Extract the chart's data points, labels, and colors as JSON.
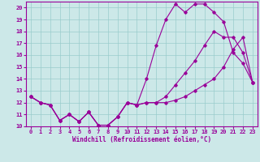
{
  "xlabel": "Windchill (Refroidissement éolien,°C)",
  "background_color": "#cce8e8",
  "grid_color": "#99cccc",
  "line_color": "#990099",
  "x_hours": [
    0,
    1,
    2,
    3,
    4,
    5,
    6,
    7,
    8,
    9,
    10,
    11,
    12,
    13,
    14,
    15,
    16,
    17,
    18,
    19,
    20,
    21,
    22,
    23
  ],
  "line1": [
    12.5,
    12.0,
    11.8,
    10.5,
    11.0,
    10.4,
    11.2,
    10.1,
    10.1,
    10.8,
    12.0,
    11.8,
    14.0,
    16.8,
    19.0,
    20.3,
    19.6,
    20.3,
    20.3,
    19.6,
    18.8,
    16.2,
    15.3,
    13.7
  ],
  "line2": [
    12.5,
    12.0,
    11.8,
    10.5,
    11.0,
    10.4,
    11.2,
    10.1,
    10.1,
    10.8,
    12.0,
    11.8,
    12.0,
    12.0,
    12.5,
    13.5,
    14.5,
    15.5,
    16.8,
    18.0,
    17.5,
    17.5,
    16.2,
    13.7
  ],
  "line3": [
    12.5,
    12.0,
    11.8,
    10.5,
    11.0,
    10.4,
    11.2,
    10.1,
    10.1,
    10.8,
    12.0,
    11.8,
    12.0,
    12.0,
    12.0,
    12.2,
    12.5,
    13.0,
    13.5,
    14.0,
    15.0,
    16.5,
    17.5,
    13.7
  ],
  "ylim": [
    10,
    20.5
  ],
  "yticks": [
    10,
    11,
    12,
    13,
    14,
    15,
    16,
    17,
    18,
    19,
    20
  ],
  "xticks": [
    0,
    1,
    2,
    3,
    4,
    5,
    6,
    7,
    8,
    9,
    10,
    11,
    12,
    13,
    14,
    15,
    16,
    17,
    18,
    19,
    20,
    21,
    22,
    23
  ]
}
